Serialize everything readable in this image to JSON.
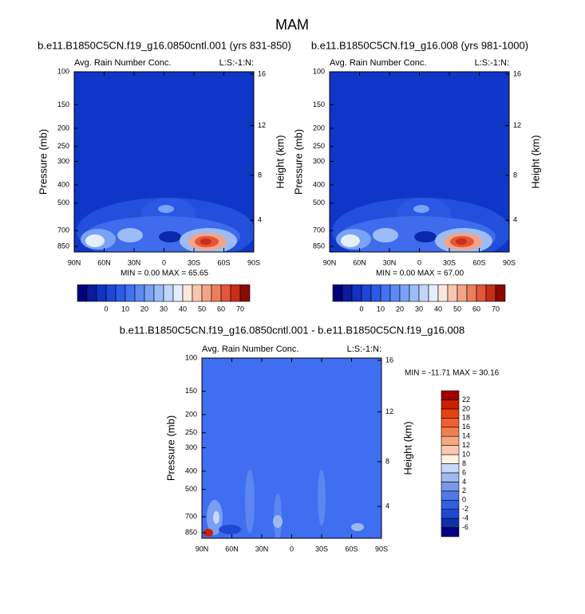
{
  "title": "MAM",
  "chart_data": [
    {
      "type": "contour",
      "title": "b.e11.B1850C5CN.f19_g16.0850cntl.001 (yrs 831-850)",
      "left_string": "Avg. Rain Number Conc.",
      "right_string": "L:S:-1:N:",
      "ylabel": "Pressure (mb)",
      "y2label": "Height (km)",
      "xlim": [
        90,
        -90
      ],
      "xticks": [
        {
          "value": 90,
          "label": "90N"
        },
        {
          "value": 60,
          "label": "60N"
        },
        {
          "value": 30,
          "label": "30N"
        },
        0,
        {
          "value": -30,
          "label": "30S"
        },
        {
          "value": -60,
          "label": "60S"
        },
        {
          "value": -90,
          "label": "90S"
        }
      ],
      "ylim": [
        100,
        910
      ],
      "ylog": true,
      "yticks": [
        100,
        150,
        200,
        250,
        300,
        400,
        500,
        700,
        850
      ],
      "y2ticks": [
        4,
        8,
        12,
        16
      ],
      "annotation": "MIN =  0.00  MAX = 65.65",
      "colorbar": {
        "orientation": "horizontal",
        "levels": [
          0,
          10,
          20,
          30,
          40,
          50,
          60,
          70
        ],
        "colors": [
          "#00007a",
          "#0a1c9c",
          "#1432c2",
          "#1e46d8",
          "#2c5ae8",
          "#4272f0",
          "#5c8af2",
          "#7aa2f6",
          "#9cbcf8",
          "#c0d6fb",
          "#e4eefd",
          "#fde6dc",
          "#f9c6b0",
          "#f3a486",
          "#ec7e5e",
          "#e2563a",
          "#c82e18",
          "#8c0800"
        ]
      }
    },
    {
      "type": "contour",
      "title": "b.e11.B1850C5CN.f19_g16.008 (yrs 981-1000)",
      "left_string": "Avg. Rain Number Conc.",
      "right_string": "L:S:-1:N:",
      "ylabel": "Pressure (mb)",
      "y2label": "Height (km)",
      "xlim": [
        90,
        -90
      ],
      "xticks": [
        {
          "value": 90,
          "label": "90N"
        },
        {
          "value": 60,
          "label": "60N"
        },
        {
          "value": 30,
          "label": "30N"
        },
        0,
        {
          "value": -30,
          "label": "30S"
        },
        {
          "value": -60,
          "label": "60S"
        },
        {
          "value": -90,
          "label": "90S"
        }
      ],
      "ylim": [
        100,
        910
      ],
      "ylog": true,
      "yticks": [
        100,
        150,
        200,
        250,
        300,
        400,
        500,
        700,
        850
      ],
      "y2ticks": [
        4,
        8,
        12,
        16
      ],
      "annotation": "MIN =  0.00  MAX = 67.00",
      "colorbar": {
        "orientation": "horizontal",
        "levels": [
          0,
          10,
          20,
          30,
          40,
          50,
          60,
          70
        ],
        "colors": [
          "#00007a",
          "#0a1c9c",
          "#1432c2",
          "#1e46d8",
          "#2c5ae8",
          "#4272f0",
          "#5c8af2",
          "#7aa2f6",
          "#9cbcf8",
          "#c0d6fb",
          "#e4eefd",
          "#fde6dc",
          "#f9c6b0",
          "#f3a486",
          "#ec7e5e",
          "#e2563a",
          "#c82e18",
          "#8c0800"
        ]
      }
    },
    {
      "type": "contour",
      "title": "b.e11.B1850C5CN.f19_g16.0850cntl.001 - b.e11.B1850C5CN.f19_g16.008",
      "left_string": "Avg. Rain Number Conc.",
      "right_string": "L:S:-1:N:",
      "ylabel": "Pressure (mb)",
      "y2label": "Height (km)",
      "xlim": [
        90,
        -90
      ],
      "xticks": [
        {
          "value": 90,
          "label": "90N"
        },
        {
          "value": 60,
          "label": "60N"
        },
        {
          "value": 30,
          "label": "30N"
        },
        0,
        {
          "value": -30,
          "label": "30S"
        },
        {
          "value": -60,
          "label": "60S"
        },
        {
          "value": -90,
          "label": "90S"
        }
      ],
      "ylim": [
        100,
        910
      ],
      "ylog": true,
      "yticks": [
        100,
        150,
        200,
        250,
        300,
        400,
        500,
        700,
        850
      ],
      "y2ticks": [
        4,
        8,
        12,
        16
      ],
      "annotation": "MIN = -11.71  MAX = 30.16",
      "colorbar": {
        "orientation": "vertical",
        "levels": [
          -6,
          -4,
          -2,
          0,
          2,
          4,
          6,
          8,
          10,
          12,
          14,
          16,
          18,
          20,
          22
        ],
        "colors": [
          "#000080",
          "#1030a8",
          "#2048d0",
          "#3060e0",
          "#5078e8",
          "#7898e8",
          "#a0b8f0",
          "#c8d8f8",
          "#fdf2e6",
          "#fcc8b0",
          "#f8a880",
          "#f08050",
          "#f06030",
          "#e84010",
          "#c82000",
          "#a00000"
        ]
      }
    }
  ]
}
